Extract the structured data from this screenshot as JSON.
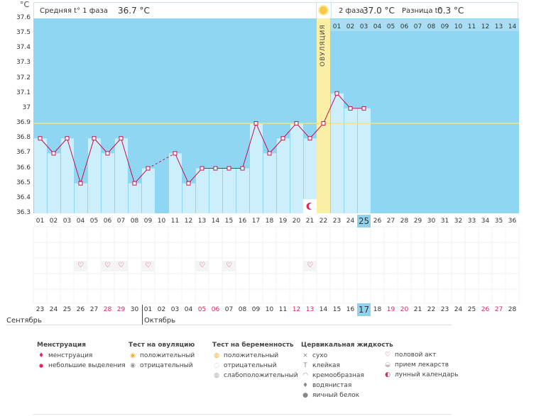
{
  "chart_data": {
    "type": "line",
    "y_unit": "°C",
    "y_ticks": [
      "37.6",
      "37.5",
      "37.4",
      "37.3",
      "37.2",
      "37.1",
      "37",
      "36.9",
      "36.8",
      "36.7",
      "36.6",
      "36.5",
      "36.4",
      "36.3"
    ],
    "ylim": [
      36.3,
      37.6
    ],
    "cycle_days": [
      "01",
      "02",
      "03",
      "04",
      "05",
      "06",
      "07",
      "08",
      "09",
      "10",
      "11",
      "12",
      "13",
      "14",
      "15",
      "16",
      "17",
      "18",
      "19",
      "20",
      "21",
      "22",
      "23",
      "24",
      "25",
      "26",
      "27",
      "28",
      "29",
      "30",
      "31",
      "32",
      "33",
      "34",
      "35",
      "36"
    ],
    "phase2_day_labels": [
      "01",
      "02",
      "03",
      "04",
      "05",
      "06",
      "07",
      "08",
      "09",
      "10",
      "11",
      "12",
      "13",
      "14"
    ],
    "temperatures": [
      36.8,
      36.7,
      36.8,
      36.5,
      36.8,
      36.7,
      36.8,
      36.5,
      36.6,
      null,
      36.7,
      36.5,
      36.6,
      36.6,
      36.6,
      36.6,
      36.9,
      36.7,
      36.8,
      36.9,
      36.8,
      36.9,
      37.1,
      37.0,
      37.0
    ],
    "coverline": 36.9,
    "ovulation_day_index": 21,
    "ovulation_label": "ОВУЛЯЦИЯ",
    "dashed_segment": [
      8,
      10
    ],
    "current_day_index": 24
  },
  "header": {
    "phase1_label": "Средняя t° 1 фаза",
    "phase1_value": "36.7 °C",
    "phase2_label": "2 фаза",
    "phase2_value": "37.0 °C",
    "diff_label": "Разница t°",
    "diff_value": "0.3 °C"
  },
  "dates": {
    "values": [
      "23",
      "24",
      "25",
      "26",
      "27",
      "28",
      "29",
      "30",
      "01",
      "02",
      "03",
      "04",
      "05",
      "06",
      "07",
      "08",
      "09",
      "10",
      "11",
      "12",
      "13",
      "14",
      "15",
      "16",
      "17",
      "18",
      "19",
      "20",
      "21",
      "22",
      "23",
      "24",
      "25",
      "26",
      "27",
      "28"
    ],
    "red_indices": [
      5,
      6,
      12,
      13,
      19,
      20,
      26,
      27,
      33,
      34
    ],
    "month1": "Сентябрь",
    "month2": "Октябрь"
  },
  "intercourse_days": [
    3,
    5,
    6,
    8,
    12,
    14,
    20
  ],
  "moon_day_index": 20,
  "colors": {
    "chart_bg": "#8fd6f2",
    "bar": "#cdeefb",
    "line": "#c8104e",
    "ovulation": "#fbeea5",
    "coverline": "#f3e37b"
  },
  "legend": {
    "menstruation": {
      "title": "Менструация",
      "items": [
        "менструация",
        "небольшие выделения"
      ]
    },
    "ovulation_test": {
      "title": "Тест на овуляцию",
      "items": [
        "положительный",
        "отрицательный"
      ]
    },
    "pregnancy_test": {
      "title": "Тест на беременность",
      "items": [
        "положительный",
        "отрицательный",
        "слабоположительный"
      ]
    },
    "cervical": {
      "title": "Цервикальная жидкость",
      "items": [
        "сухо",
        "клейкая",
        "кремообразная",
        "водянистая",
        "яичный белок"
      ]
    },
    "other": {
      "items": [
        "половой акт",
        "прием лекарств",
        "лунный календарь"
      ]
    }
  }
}
